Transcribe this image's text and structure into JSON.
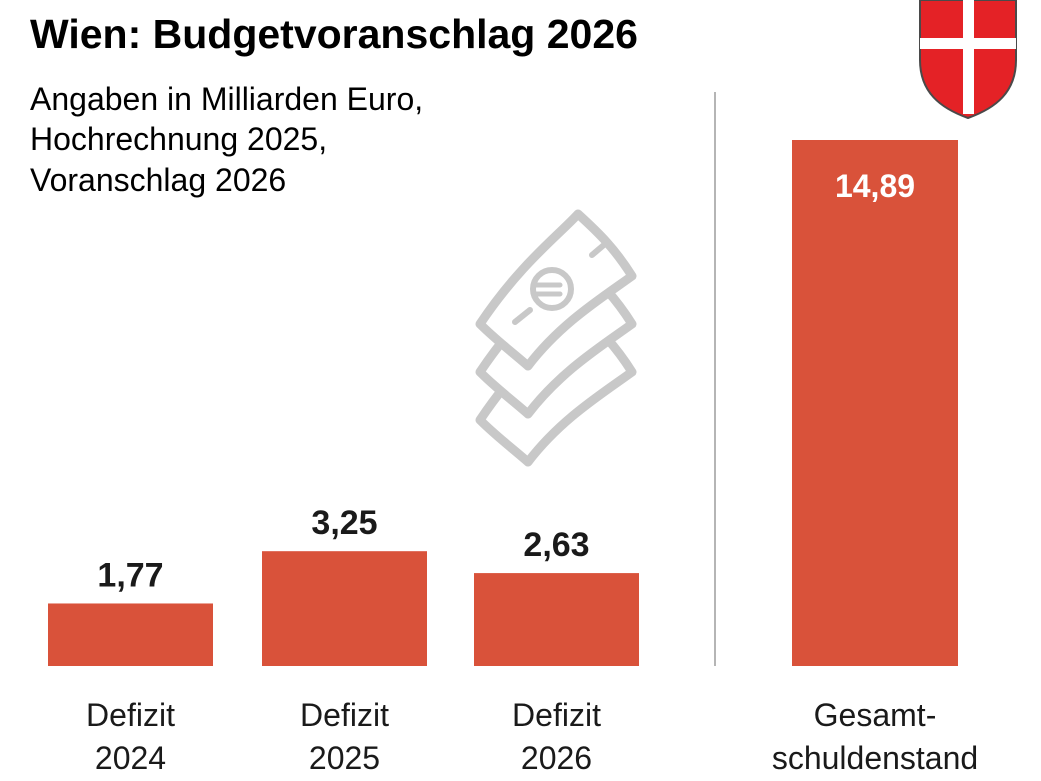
{
  "colors": {
    "bar": "#d9523a",
    "text": "#1a1a1a",
    "divider": "#b5b5b5",
    "icon": "#c8c8c8",
    "shield_red": "#e42226"
  },
  "icons": {
    "money": "euro-banknote-stack-icon",
    "coat_of_arms": "vienna-coat-of-arms-icon"
  },
  "chart_data": {
    "type": "bar",
    "title": "Wien: Budgetvoranschlag 2026",
    "subtitle_lines": [
      "Angaben in Milliarden Euro,",
      "Hochrechnung 2025,",
      "Voranschlag 2026"
    ],
    "unit": "Milliarden Euro",
    "ylim": [
      0,
      15
    ],
    "grid": false,
    "legend": "none",
    "categories": [
      [
        "Defizit",
        "2024"
      ],
      [
        "Defizit",
        "2025"
      ],
      [
        "Defizit",
        "2026"
      ],
      [
        "Gesamt-",
        "schuldenstand"
      ]
    ],
    "values": [
      1.77,
      3.25,
      2.63,
      14.89
    ],
    "value_labels": [
      "1,77",
      "3,25",
      "2,63",
      "14,89"
    ]
  }
}
